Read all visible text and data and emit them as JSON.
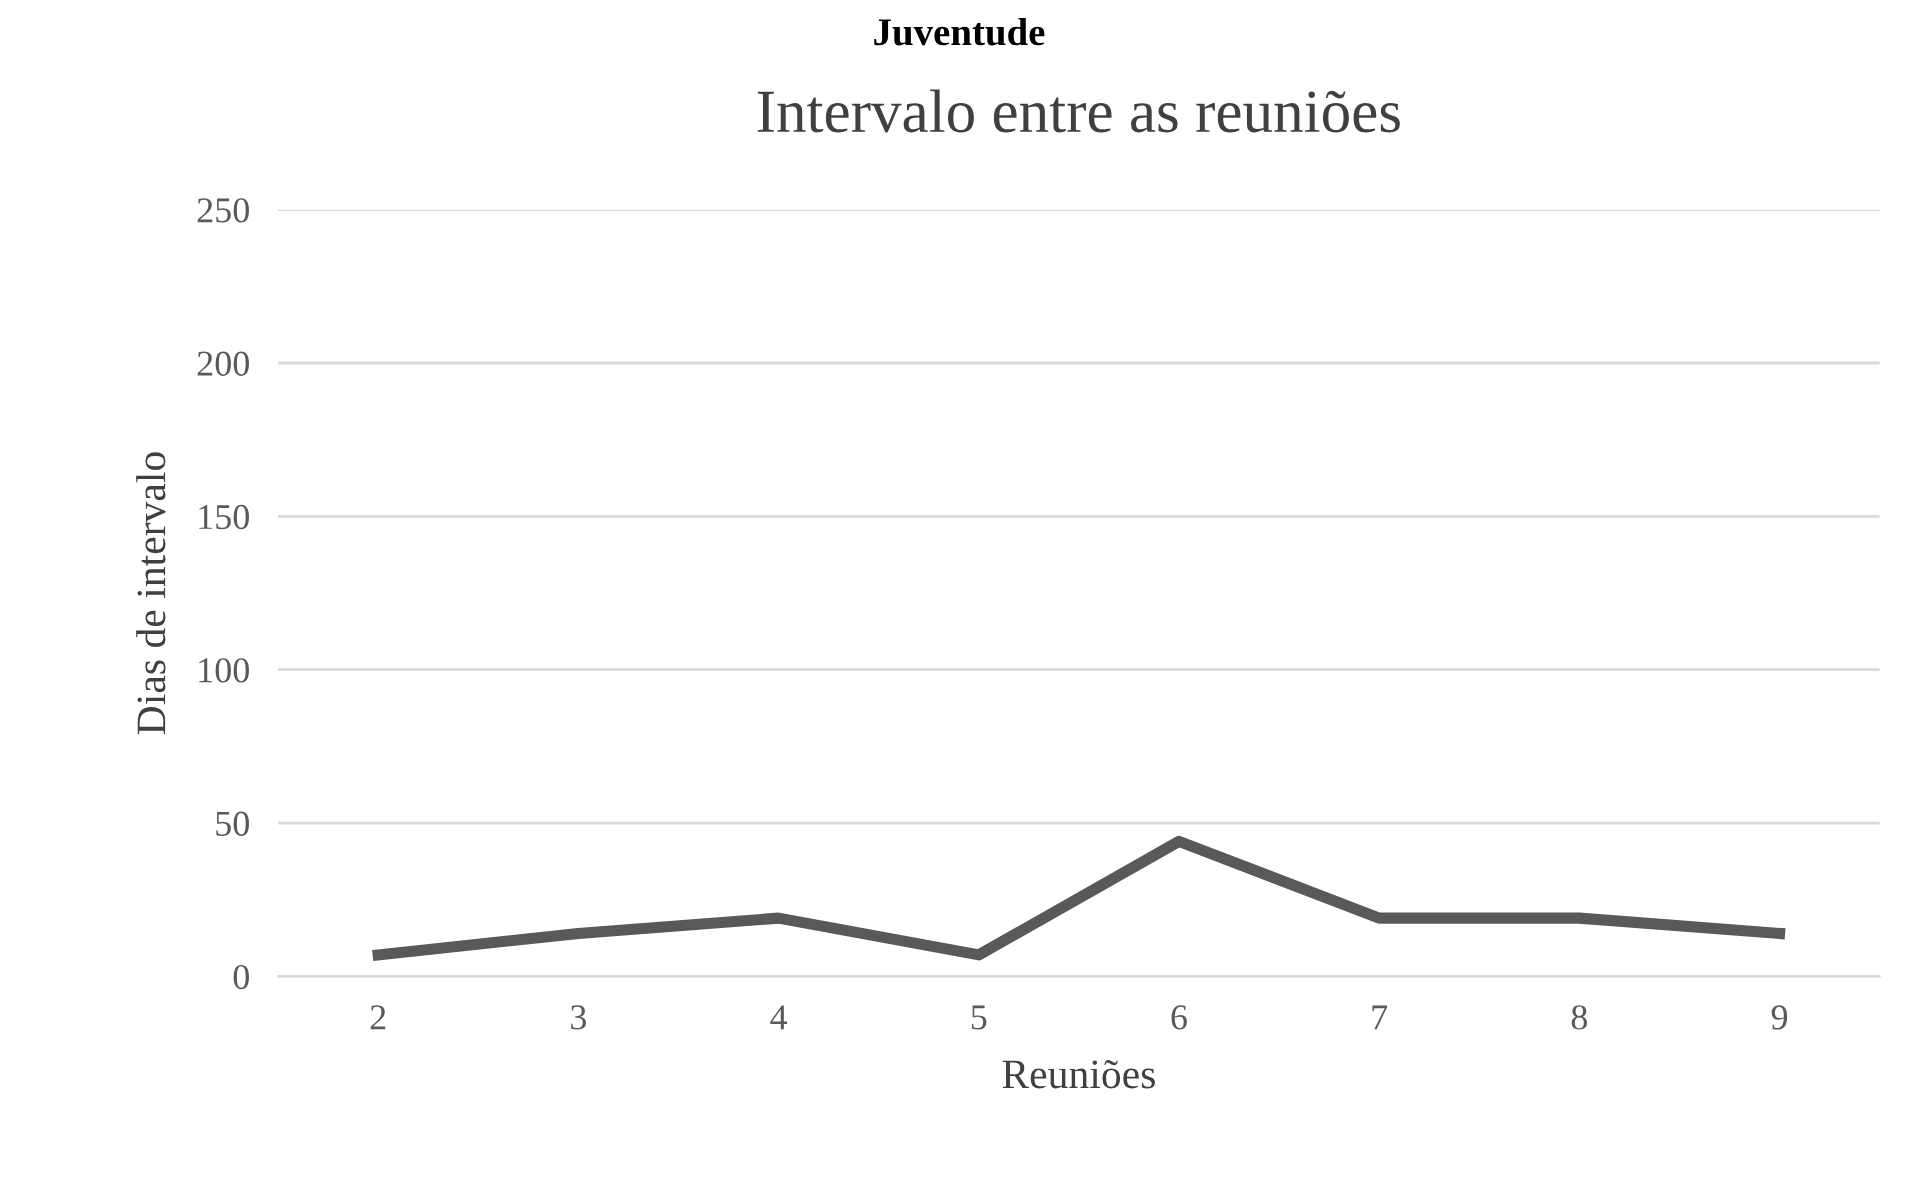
{
  "chart_data": {
    "type": "line",
    "title": "Intervalo entre as reuniões",
    "xlabel": "Reuniões",
    "ylabel": "Dias de intervalo",
    "annotations": [
      "Juventude"
    ],
    "categories": [
      "2",
      "3",
      "4",
      "5",
      "6",
      "7",
      "8",
      "9"
    ],
    "series": [
      {
        "color": "#595959",
        "values": [
          7,
          14,
          19,
          7,
          44,
          19,
          19,
          14
        ]
      }
    ],
    "ylim": [
      0,
      250
    ],
    "yticks": [
      0,
      50,
      100,
      150,
      200,
      250
    ],
    "grid": "y",
    "legend": false,
    "marker": "none",
    "line_style": "solid"
  }
}
